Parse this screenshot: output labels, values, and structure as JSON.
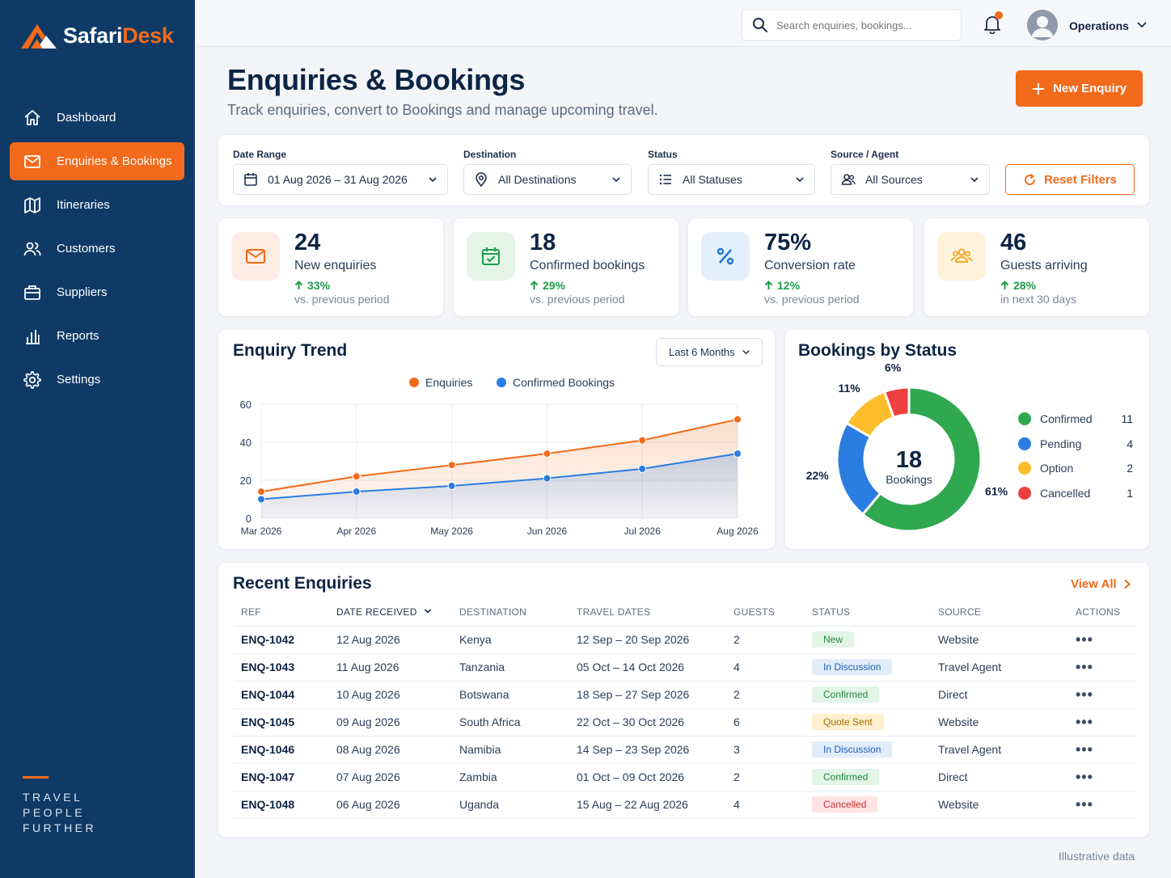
{
  "brand": {
    "name_a": "Safari",
    "name_b": "Desk",
    "tagline": [
      "TRAVEL",
      "PEOPLE",
      "FURTHER"
    ]
  },
  "sidebar": {
    "items": [
      {
        "label": "Dashboard",
        "icon": "home-icon"
      },
      {
        "label": "Enquiries & Bookings",
        "icon": "mail-icon",
        "active": true
      },
      {
        "label": "Itineraries",
        "icon": "map-icon"
      },
      {
        "label": "Customers",
        "icon": "users-icon"
      },
      {
        "label": "Suppliers",
        "icon": "briefcase-icon"
      },
      {
        "label": "Reports",
        "icon": "bar-chart-icon"
      },
      {
        "label": "Settings",
        "icon": "gear-icon"
      }
    ]
  },
  "topbar": {
    "search_placeholder": "Search enquiries, bookings...",
    "user": "Operations"
  },
  "header": {
    "title": "Enquiries & Bookings",
    "subtitle": "Track enquiries, convert to Bookings and manage upcoming travel.",
    "new_button": "New Enquiry"
  },
  "filters": {
    "date_label": "Date Range",
    "date_value": "01 Aug 2026 – 31 Aug 2026",
    "destination_label": "Destination",
    "destination_value": "All Destinations",
    "status_label": "Status",
    "status_value": "All Statuses",
    "source_label": "Source / Agent",
    "source_value": "All Sources",
    "reset": "Reset Filters"
  },
  "kpis": [
    {
      "value": "24",
      "label": "New enquiries",
      "change": "33%",
      "note": "vs. previous period",
      "icon": "mail-icon",
      "bg": "#fdece3",
      "fg": "#f26a1b"
    },
    {
      "value": "18",
      "label": "Confirmed bookings",
      "change": "29%",
      "note": "vs. previous period",
      "icon": "calendar-check-icon",
      "bg": "#e4f5e8",
      "fg": "#1e9c4a"
    },
    {
      "value": "75%",
      "label": "Conversion rate",
      "change": "12%",
      "note": "vs. previous period",
      "icon": "percent-icon",
      "bg": "#e3f0fc",
      "fg": "#1f74d6"
    },
    {
      "value": "46",
      "label": "Guests arriving",
      "change": "28%",
      "note": "in next 30 days",
      "icon": "group-icon",
      "bg": "#fff3dc",
      "fg": "#f5a623"
    }
  ],
  "trend": {
    "title": "Enquiry Trend",
    "period": "Last 6 Months"
  },
  "status_card": {
    "title": "Bookings by Status",
    "center_value": "18",
    "center_label": "Bookings"
  },
  "chart_data": [
    {
      "type": "line",
      "title": "Enquiry Trend",
      "categories": [
        "Mar 2026",
        "Apr 2026",
        "May 2026",
        "Jun 2026",
        "Jul 2026",
        "Aug 2026"
      ],
      "series": [
        {
          "name": "Enquiries",
          "values": [
            14,
            22,
            28,
            34,
            41,
            52
          ],
          "color": "#f26a1b"
        },
        {
          "name": "Confirmed Bookings",
          "values": [
            10,
            14,
            17,
            21,
            26,
            34
          ],
          "color": "#2a7de1"
        }
      ],
      "ylim": [
        0,
        60
      ],
      "yticks": [
        0,
        20,
        40,
        60
      ],
      "grid": true,
      "legend": "top-center"
    },
    {
      "type": "pie",
      "title": "Bookings by Status",
      "slices": [
        {
          "label": "Confirmed",
          "value": 11,
          "pct": "61%",
          "color": "#2fa84f"
        },
        {
          "label": "Pending",
          "value": 4,
          "pct": "22%",
          "color": "#2a7de1"
        },
        {
          "label": "Option",
          "value": 2,
          "pct": "11%",
          "color": "#fbbd2a"
        },
        {
          "label": "Cancelled",
          "value": 1,
          "pct": "6%",
          "color": "#ee4040"
        }
      ],
      "legend": "right"
    }
  ],
  "recent": {
    "title": "Recent Enquiries",
    "view_all": "View All",
    "columns": [
      "REF",
      "DATE RECEIVED",
      "DESTINATION",
      "TRAVEL DATES",
      "GUESTS",
      "STATUS",
      "SOURCE",
      "ACTIONS"
    ],
    "rows": [
      {
        "ref": "ENQ-1042",
        "date": "12 Aug 2026",
        "dest": "Kenya",
        "travel": "12 Sep – 20 Sep 2026",
        "guests": "2",
        "status": "New",
        "source": "Website"
      },
      {
        "ref": "ENQ-1043",
        "date": "11 Aug 2026",
        "dest": "Tanzania",
        "travel": "05 Oct – 14 Oct 2026",
        "guests": "4",
        "status": "In Discussion",
        "source": "Travel Agent"
      },
      {
        "ref": "ENQ-1044",
        "date": "10 Aug 2026",
        "dest": "Botswana",
        "travel": "18 Sep – 27 Sep 2026",
        "guests": "2",
        "status": "Confirmed",
        "source": "Direct"
      },
      {
        "ref": "ENQ-1045",
        "date": "09 Aug 2026",
        "dest": "South Africa",
        "travel": "22 Oct – 30 Oct 2026",
        "guests": "6",
        "status": "Quote Sent",
        "source": "Website"
      },
      {
        "ref": "ENQ-1046",
        "date": "08 Aug 2026",
        "dest": "Namibia",
        "travel": "14 Sep – 23 Sep 2026",
        "guests": "3",
        "status": "In Discussion",
        "source": "Travel Agent"
      },
      {
        "ref": "ENQ-1047",
        "date": "07 Aug 2026",
        "dest": "Zambia",
        "travel": "01 Oct – 09 Oct 2026",
        "guests": "2",
        "status": "Confirmed",
        "source": "Direct"
      },
      {
        "ref": "ENQ-1048",
        "date": "06 Aug 2026",
        "dest": "Uganda",
        "travel": "15 Aug – 22 Aug 2026",
        "guests": "4",
        "status": "Cancelled",
        "source": "Website"
      }
    ],
    "status_colors": {
      "New": {
        "bg": "#e3f5e6",
        "fg": "#1e8a3f"
      },
      "In Discussion": {
        "bg": "#e1edfb",
        "fg": "#1f5fb8"
      },
      "Confirmed": {
        "bg": "#e3f5e6",
        "fg": "#1e8a3f"
      },
      "Quote Sent": {
        "bg": "#fff1cf",
        "fg": "#a66b00"
      },
      "Cancelled": {
        "bg": "#fde3e3",
        "fg": "#c72f2f"
      }
    }
  },
  "footer_note": "Illustrative data"
}
